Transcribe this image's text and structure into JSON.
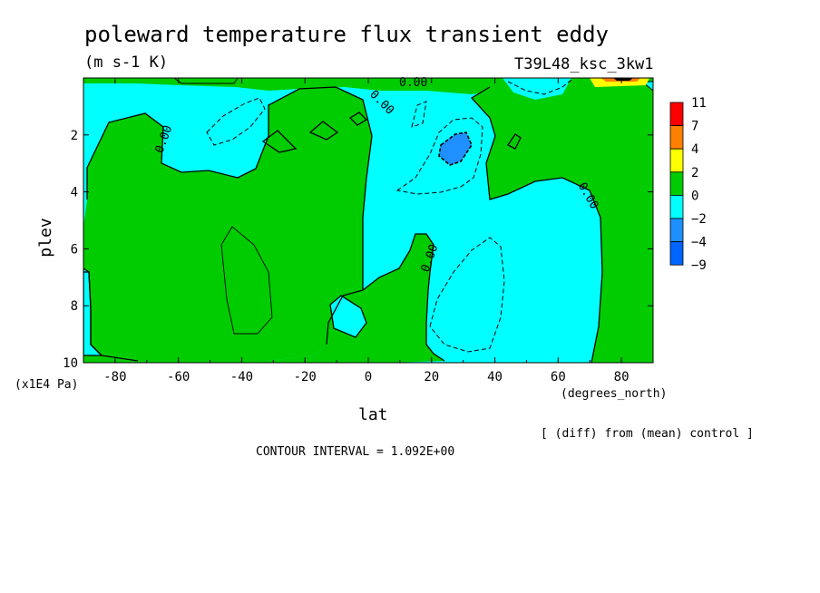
{
  "chart_data": {
    "type": "heatmap",
    "title": "poleward temperature flux transient eddy",
    "units": "(m s-1 K)",
    "run_label": "T39L48_ksc_3kw1",
    "xlabel": "lat",
    "x_units": "(degrees_north)",
    "ylabel": "plev",
    "y_units": "(x1E4 Pa)",
    "xlim": [
      -90,
      90
    ],
    "ylim": [
      10,
      0
    ],
    "x_ticks": [
      "-80",
      "-60",
      "-40",
      "-20",
      "0",
      "20",
      "40",
      "60",
      "80"
    ],
    "y_ticks": [
      "2",
      "4",
      "6",
      "8",
      "10"
    ],
    "contour_interval_text": "CONTOUR INTERVAL = 1.092E+00",
    "diff_note": "[ (diff) from (mean) control ]",
    "contour_labels": [
      "0.00",
      "0.00",
      "0.00",
      "0.00",
      "0.00",
      "0.00"
    ],
    "colorbar": {
      "labels": [
        "11",
        "7",
        "4",
        "2",
        "0",
        "−2",
        "−4",
        "−9"
      ],
      "colors": [
        "#ff0000",
        "#ff7f00",
        "#ffff00",
        "#00cc00",
        "#00ffff",
        "#1e90ff",
        "#0064ff"
      ]
    },
    "regions": [
      {
        "sign": "negative",
        "color": "#00ffff",
        "lat_range": [
          -90,
          0
        ],
        "plev_range": [
          0,
          3
        ]
      },
      {
        "sign": "negative",
        "color": "#00ffff",
        "lat_range": [
          0,
          70
        ],
        "plev_range": [
          1,
          10
        ]
      },
      {
        "sign": "negative_strong",
        "color": "#1e90ff",
        "lat_range": [
          20,
          32
        ],
        "plev_range": [
          2,
          3
        ]
      },
      {
        "sign": "positive",
        "color": "#00cc00",
        "lat_range": [
          -90,
          0
        ],
        "plev_range": [
          3,
          10
        ]
      },
      {
        "sign": "positive",
        "color": "#00cc00",
        "lat_range": [
          40,
          90
        ],
        "plev_range": [
          0,
          10
        ]
      }
    ]
  }
}
